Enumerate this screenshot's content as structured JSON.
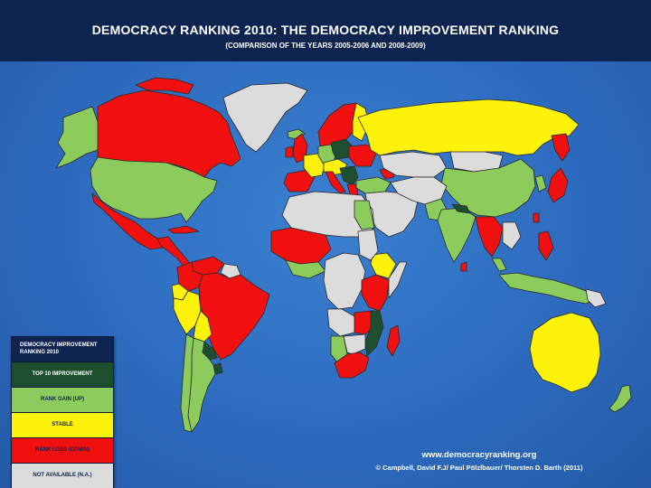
{
  "header": {
    "title": "Democracy Ranking 2010: The Democracy Improvement Ranking",
    "subtitle": "(Comparison of the years 2005-2006 and 2008-2009)"
  },
  "legend": {
    "title": "Democracy Improvement Ranking 2010",
    "items": [
      {
        "label": "Top 10 Improvement",
        "color": "#1d4f2e",
        "text_color": "#ffffff"
      },
      {
        "label": "Rank Gain (Up)",
        "color": "#8ccc5c",
        "text_color": "#0e2450"
      },
      {
        "label": "Stable",
        "color": "#fcf20a",
        "text_color": "#0e2450"
      },
      {
        "label": "Rank Loss (Down)",
        "color": "#f01010",
        "text_color": "#0e2450"
      },
      {
        "label": "Not Available (n.a.)",
        "color": "#dcdcdc",
        "text_color": "#0e2450"
      }
    ]
  },
  "colors": {
    "ocean": "#2d6ec2",
    "header_bg": "#0e2450",
    "border": "#2a2a2a"
  },
  "footer": {
    "url": "www.democracyranking.org",
    "credit": "© Campbell, David F.J/ Paul Pölzlbauer/ Thorsten D. Barth (2011)"
  }
}
